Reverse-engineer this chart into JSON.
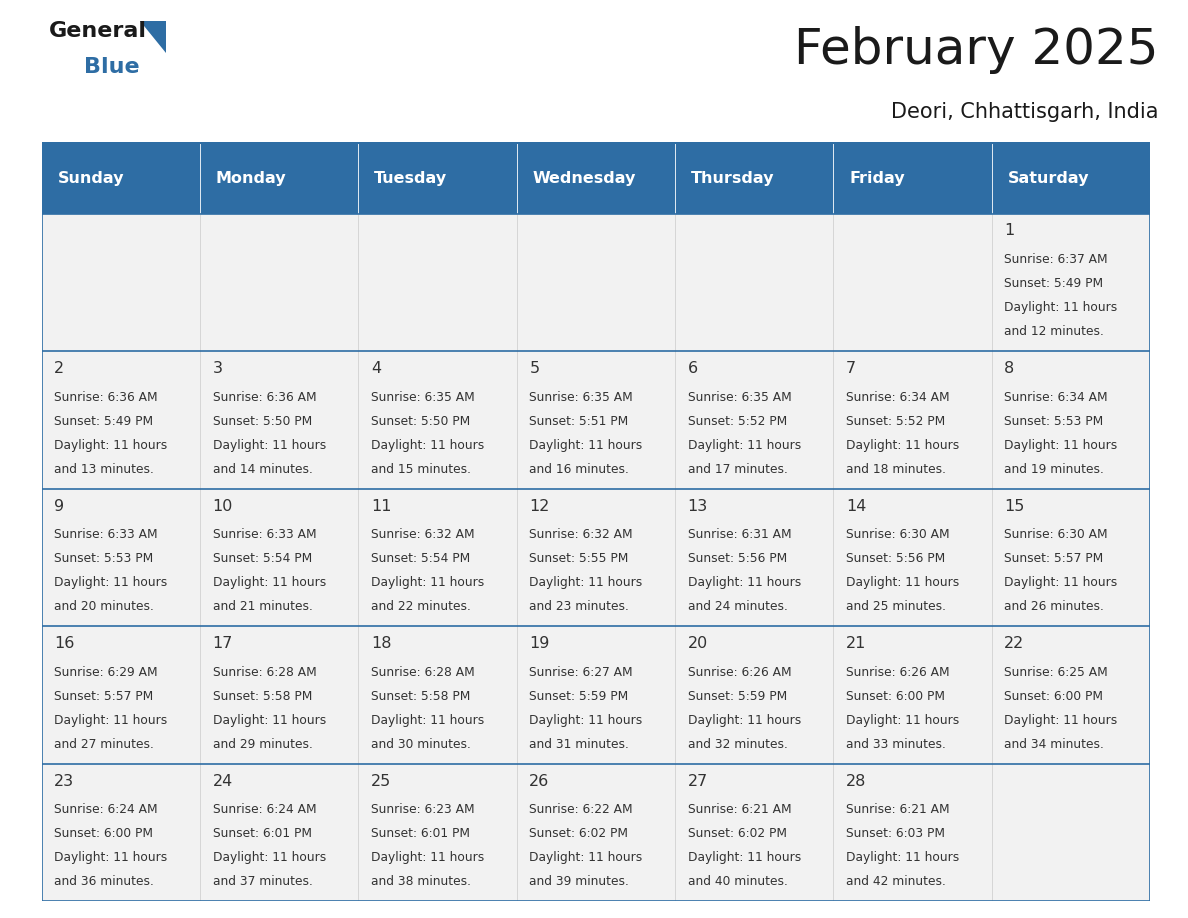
{
  "title": "February 2025",
  "subtitle": "Deori, Chhattisgarh, India",
  "days_of_week": [
    "Sunday",
    "Monday",
    "Tuesday",
    "Wednesday",
    "Thursday",
    "Friday",
    "Saturday"
  ],
  "header_bg": "#2E6DA4",
  "header_text": "#FFFFFF",
  "cell_bg": "#F2F2F2",
  "line_color": "#2E6DA4",
  "text_color": "#333333",
  "calendar_data": [
    [
      null,
      null,
      null,
      null,
      null,
      null,
      {
        "day": 1,
        "sunrise": "6:37 AM",
        "sunset": "5:49 PM",
        "daylight": "11 hours",
        "daylight2": "and 12 minutes."
      }
    ],
    [
      {
        "day": 2,
        "sunrise": "6:36 AM",
        "sunset": "5:49 PM",
        "daylight": "11 hours",
        "daylight2": "and 13 minutes."
      },
      {
        "day": 3,
        "sunrise": "6:36 AM",
        "sunset": "5:50 PM",
        "daylight": "11 hours",
        "daylight2": "and 14 minutes."
      },
      {
        "day": 4,
        "sunrise": "6:35 AM",
        "sunset": "5:50 PM",
        "daylight": "11 hours",
        "daylight2": "and 15 minutes."
      },
      {
        "day": 5,
        "sunrise": "6:35 AM",
        "sunset": "5:51 PM",
        "daylight": "11 hours",
        "daylight2": "and 16 minutes."
      },
      {
        "day": 6,
        "sunrise": "6:35 AM",
        "sunset": "5:52 PM",
        "daylight": "11 hours",
        "daylight2": "and 17 minutes."
      },
      {
        "day": 7,
        "sunrise": "6:34 AM",
        "sunset": "5:52 PM",
        "daylight": "11 hours",
        "daylight2": "and 18 minutes."
      },
      {
        "day": 8,
        "sunrise": "6:34 AM",
        "sunset": "5:53 PM",
        "daylight": "11 hours",
        "daylight2": "and 19 minutes."
      }
    ],
    [
      {
        "day": 9,
        "sunrise": "6:33 AM",
        "sunset": "5:53 PM",
        "daylight": "11 hours",
        "daylight2": "and 20 minutes."
      },
      {
        "day": 10,
        "sunrise": "6:33 AM",
        "sunset": "5:54 PM",
        "daylight": "11 hours",
        "daylight2": "and 21 minutes."
      },
      {
        "day": 11,
        "sunrise": "6:32 AM",
        "sunset": "5:54 PM",
        "daylight": "11 hours",
        "daylight2": "and 22 minutes."
      },
      {
        "day": 12,
        "sunrise": "6:32 AM",
        "sunset": "5:55 PM",
        "daylight": "11 hours",
        "daylight2": "and 23 minutes."
      },
      {
        "day": 13,
        "sunrise": "6:31 AM",
        "sunset": "5:56 PM",
        "daylight": "11 hours",
        "daylight2": "and 24 minutes."
      },
      {
        "day": 14,
        "sunrise": "6:30 AM",
        "sunset": "5:56 PM",
        "daylight": "11 hours",
        "daylight2": "and 25 minutes."
      },
      {
        "day": 15,
        "sunrise": "6:30 AM",
        "sunset": "5:57 PM",
        "daylight": "11 hours",
        "daylight2": "and 26 minutes."
      }
    ],
    [
      {
        "day": 16,
        "sunrise": "6:29 AM",
        "sunset": "5:57 PM",
        "daylight": "11 hours",
        "daylight2": "and 27 minutes."
      },
      {
        "day": 17,
        "sunrise": "6:28 AM",
        "sunset": "5:58 PM",
        "daylight": "11 hours",
        "daylight2": "and 29 minutes."
      },
      {
        "day": 18,
        "sunrise": "6:28 AM",
        "sunset": "5:58 PM",
        "daylight": "11 hours",
        "daylight2": "and 30 minutes."
      },
      {
        "day": 19,
        "sunrise": "6:27 AM",
        "sunset": "5:59 PM",
        "daylight": "11 hours",
        "daylight2": "and 31 minutes."
      },
      {
        "day": 20,
        "sunrise": "6:26 AM",
        "sunset": "5:59 PM",
        "daylight": "11 hours",
        "daylight2": "and 32 minutes."
      },
      {
        "day": 21,
        "sunrise": "6:26 AM",
        "sunset": "6:00 PM",
        "daylight": "11 hours",
        "daylight2": "and 33 minutes."
      },
      {
        "day": 22,
        "sunrise": "6:25 AM",
        "sunset": "6:00 PM",
        "daylight": "11 hours",
        "daylight2": "and 34 minutes."
      }
    ],
    [
      {
        "day": 23,
        "sunrise": "6:24 AM",
        "sunset": "6:00 PM",
        "daylight": "11 hours",
        "daylight2": "and 36 minutes."
      },
      {
        "day": 24,
        "sunrise": "6:24 AM",
        "sunset": "6:01 PM",
        "daylight": "11 hours",
        "daylight2": "and 37 minutes."
      },
      {
        "day": 25,
        "sunrise": "6:23 AM",
        "sunset": "6:01 PM",
        "daylight": "11 hours",
        "daylight2": "and 38 minutes."
      },
      {
        "day": 26,
        "sunrise": "6:22 AM",
        "sunset": "6:02 PM",
        "daylight": "11 hours",
        "daylight2": "and 39 minutes."
      },
      {
        "day": 27,
        "sunrise": "6:21 AM",
        "sunset": "6:02 PM",
        "daylight": "11 hours",
        "daylight2": "and 40 minutes."
      },
      {
        "day": 28,
        "sunrise": "6:21 AM",
        "sunset": "6:03 PM",
        "daylight": "11 hours",
        "daylight2": "and 42 minutes."
      },
      null
    ]
  ]
}
